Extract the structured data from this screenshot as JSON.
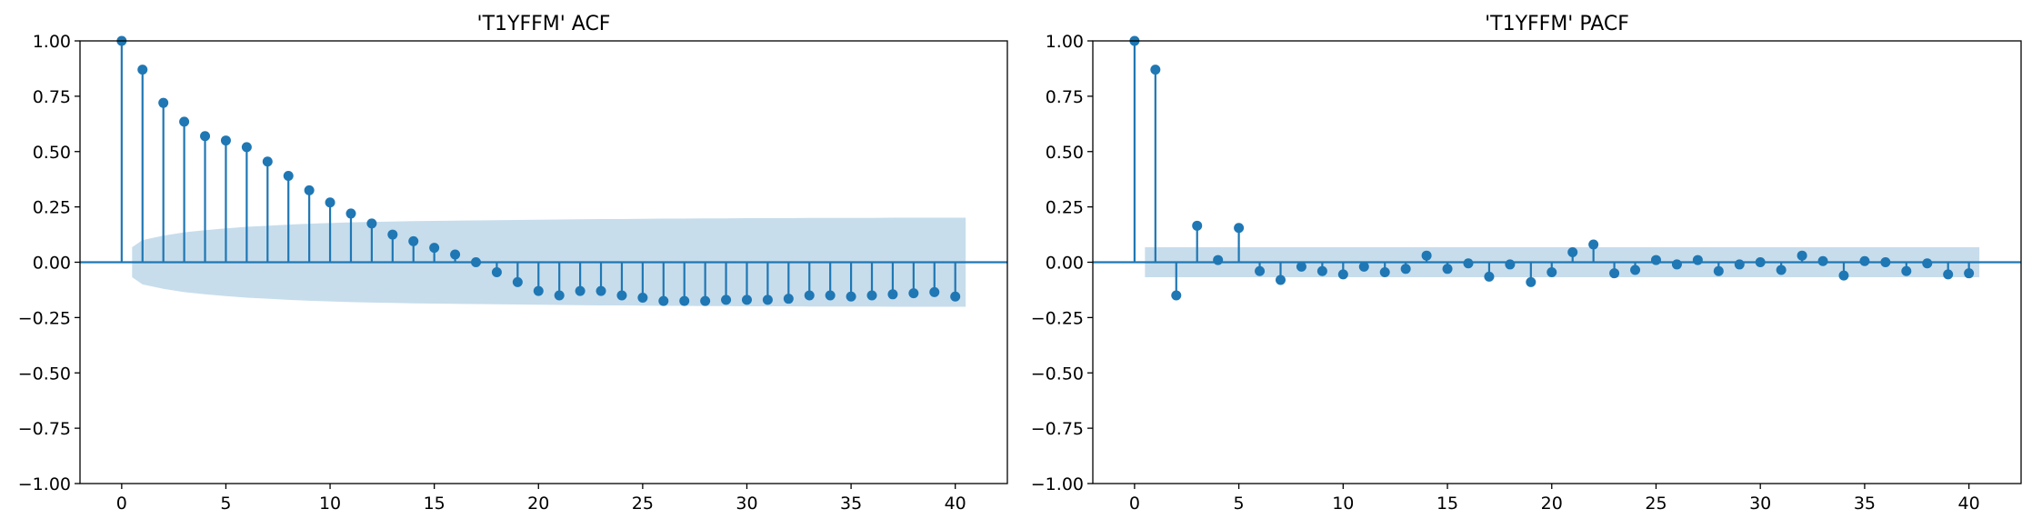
{
  "colors": {
    "stem": "#1f77b4",
    "band": "#1f77b4",
    "zero_line": "#1f77b4",
    "axes": "#000000"
  },
  "chart_data": [
    {
      "type": "stem",
      "title": "'T1YFFM' ACF",
      "xlabel": "",
      "ylabel": "",
      "xlim": [
        -2,
        42.5
      ],
      "ylim": [
        -1.0,
        1.0
      ],
      "x_ticks": [
        0,
        5,
        10,
        15,
        20,
        25,
        30,
        35,
        40
      ],
      "y_ticks": [
        -1.0,
        -0.75,
        -0.5,
        -0.25,
        0.0,
        0.25,
        0.5,
        0.75,
        1.0
      ],
      "x_tick_labels": [
        "0",
        "5",
        "10",
        "15",
        "20",
        "25",
        "30",
        "35",
        "40"
      ],
      "y_tick_labels": [
        "−1.00",
        "−0.75",
        "−0.50",
        "−0.25",
        "0.00",
        "0.25",
        "0.50",
        "0.75",
        "1.00"
      ],
      "lags": [
        0,
        1,
        2,
        3,
        4,
        5,
        6,
        7,
        8,
        9,
        10,
        11,
        12,
        13,
        14,
        15,
        16,
        17,
        18,
        19,
        20,
        21,
        22,
        23,
        24,
        25,
        26,
        27,
        28,
        29,
        30,
        31,
        32,
        33,
        34,
        35,
        36,
        37,
        38,
        39,
        40
      ],
      "values": [
        1.0,
        0.87,
        0.72,
        0.635,
        0.57,
        0.55,
        0.52,
        0.455,
        0.39,
        0.325,
        0.27,
        0.22,
        0.175,
        0.125,
        0.095,
        0.065,
        0.035,
        0.0,
        -0.045,
        -0.09,
        -0.13,
        -0.15,
        -0.13,
        -0.13,
        -0.15,
        -0.16,
        -0.175,
        -0.175,
        -0.175,
        -0.17,
        -0.17,
        -0.17,
        -0.165,
        -0.15,
        -0.15,
        -0.155,
        -0.15,
        -0.145,
        -0.14,
        -0.135,
        -0.155
      ],
      "confidence_band": {
        "lags": [
          0.5,
          1,
          2,
          3,
          4,
          5,
          6,
          7,
          8,
          9,
          10,
          11,
          12,
          13,
          14,
          15,
          16,
          17,
          18,
          19,
          20,
          21,
          22,
          23,
          24,
          25,
          26,
          27,
          28,
          29,
          30,
          31,
          32,
          33,
          34,
          35,
          36,
          37,
          38,
          39,
          40.5
        ],
        "upper": [
          0.068,
          0.1,
          0.12,
          0.135,
          0.145,
          0.153,
          0.16,
          0.165,
          0.17,
          0.174,
          0.177,
          0.18,
          0.182,
          0.184,
          0.186,
          0.187,
          0.188,
          0.189,
          0.19,
          0.191,
          0.192,
          0.193,
          0.194,
          0.195,
          0.195,
          0.196,
          0.197,
          0.197,
          0.198,
          0.198,
          0.199,
          0.199,
          0.199,
          0.2,
          0.2,
          0.2,
          0.2,
          0.201,
          0.201,
          0.201,
          0.201
        ]
      }
    },
    {
      "type": "stem",
      "title": "'T1YFFM' PACF",
      "xlabel": "",
      "ylabel": "",
      "xlim": [
        -2,
        42.5
      ],
      "ylim": [
        -1.0,
        1.0
      ],
      "x_ticks": [
        0,
        5,
        10,
        15,
        20,
        25,
        30,
        35,
        40
      ],
      "y_ticks": [
        -1.0,
        -0.75,
        -0.5,
        -0.25,
        0.0,
        0.25,
        0.5,
        0.75,
        1.0
      ],
      "x_tick_labels": [
        "0",
        "5",
        "10",
        "15",
        "20",
        "25",
        "30",
        "35",
        "40"
      ],
      "y_tick_labels": [
        "−1.00",
        "−0.75",
        "−0.50",
        "−0.25",
        "0.00",
        "0.25",
        "0.50",
        "0.75",
        "1.00"
      ],
      "lags": [
        0,
        1,
        2,
        3,
        4,
        5,
        6,
        7,
        8,
        9,
        10,
        11,
        12,
        13,
        14,
        15,
        16,
        17,
        18,
        19,
        20,
        21,
        22,
        23,
        24,
        25,
        26,
        27,
        28,
        29,
        30,
        31,
        32,
        33,
        34,
        35,
        36,
        37,
        38,
        39,
        40
      ],
      "values": [
        1.0,
        0.87,
        -0.15,
        0.165,
        0.01,
        0.155,
        -0.04,
        -0.08,
        -0.02,
        -0.04,
        -0.055,
        -0.02,
        -0.045,
        -0.03,
        0.03,
        -0.03,
        -0.005,
        -0.065,
        -0.01,
        -0.09,
        -0.045,
        0.045,
        0.08,
        -0.05,
        -0.035,
        0.01,
        -0.01,
        0.01,
        -0.04,
        -0.01,
        0.0,
        -0.035,
        0.03,
        0.005,
        -0.06,
        0.005,
        0.0,
        -0.04,
        -0.005,
        -0.055,
        -0.05
      ],
      "confidence_band": {
        "lags": [
          0.5,
          40.5
        ],
        "upper": [
          0.068,
          0.068
        ]
      }
    }
  ]
}
